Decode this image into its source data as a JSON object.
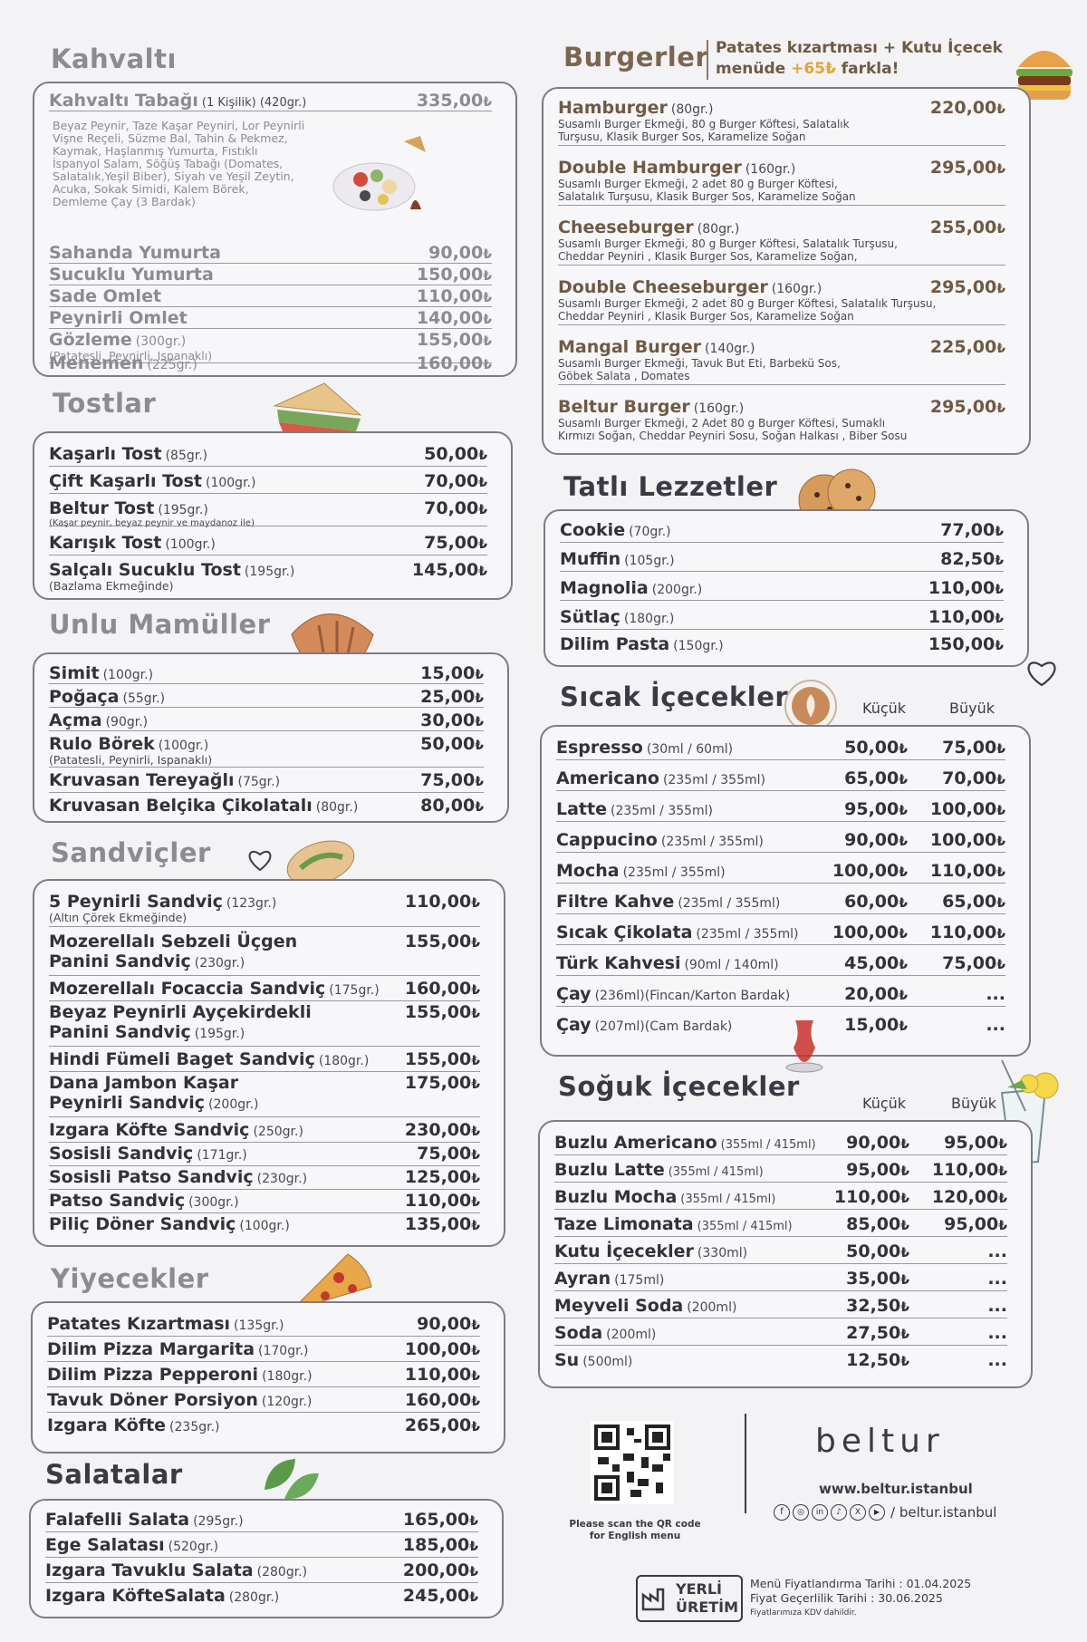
{
  "currency": "₺",
  "kahvalti": {
    "title": "Kahvaltı",
    "items": [
      {
        "name": "Kahvaltı Tabağı",
        "gram": "(1 Kişilik)  (420gr.)",
        "price": "335,00",
        "desc": "Beyaz Peynir, Taze Kaşar Peyniri, Lor Peynirli\nVişne Reçeli, Süzme Bal, Tahin & Pekmez,\nKaymak, Haşlanmış Yumurta, Fıstıklı\nİspanyol Salam, Söğüş Tabağı (Domates,\nSalatalık,Yeşil Biber), Siyah ve Yeşil Zeytin,\nAcuka, Sokak Simidi, Kalem Börek,\nDemleme Çay (3 Bardak)"
      },
      {
        "name": "Sahanda Yumurta",
        "gram": "",
        "price": "90,00"
      },
      {
        "name": "Sucuklu Yumurta",
        "gram": "",
        "price": "150,00"
      },
      {
        "name": "Sade Omlet",
        "gram": "",
        "price": "110,00"
      },
      {
        "name": "Peynirli Omlet",
        "gram": "",
        "price": "140,00"
      },
      {
        "name": "Gözleme",
        "gram": "(300gr.)",
        "price": "155,00",
        "desc": "(Patatesli, Peynirli, Ispanaklı)"
      },
      {
        "name": "Menemen",
        "gram": "(225gr.)",
        "price": "160,00"
      }
    ]
  },
  "tostlar": {
    "title": "Tostlar",
    "items": [
      {
        "name": "Kaşarlı Tost",
        "gram": "(85gr.)",
        "price": "50,00"
      },
      {
        "name": "Çift Kaşarlı Tost",
        "gram": "(100gr.)",
        "price": "70,00"
      },
      {
        "name": "Beltur Tost",
        "gram": "(195gr.)",
        "price": "70,00",
        "desc": "(Kaşar peynir, beyaz peynir ve maydanoz ile)"
      },
      {
        "name": "Karışık Tost",
        "gram": "(100gr.)",
        "price": "75,00"
      },
      {
        "name": "Salçalı Sucuklu Tost",
        "gram": "(195gr.)",
        "price": "145,00",
        "desc": "(Bazlama Ekmeğinde)"
      }
    ]
  },
  "unlu": {
    "title": "Unlu Mamüller",
    "items": [
      {
        "name": "Simit",
        "gram": "(100gr.)",
        "price": "15,00"
      },
      {
        "name": "Poğaça",
        "gram": "(55gr.)",
        "price": "25,00"
      },
      {
        "name": "Açma",
        "gram": "(90gr.)",
        "price": "30,00"
      },
      {
        "name": "Rulo Börek",
        "gram": "(100gr.)",
        "price": "50,00",
        "desc": "(Patatesli, Peynirli, Ispanaklı)"
      },
      {
        "name": "Kruvasan Tereyağlı",
        "gram": "(75gr.)",
        "price": "75,00"
      },
      {
        "name": "Kruvasan Belçika Çikolatalı",
        "gram": "(80gr.)",
        "price": "80,00"
      }
    ]
  },
  "sandvicler": {
    "title": "Sandviçler",
    "items": [
      {
        "name": "5 Peynirli Sandviç",
        "gram": "(123gr.)",
        "price": "110,00",
        "desc": "(Altın Çörek Ekmeğinde)"
      },
      {
        "name": "Mozerellalı Sebzeli Üçgen",
        "name2": "Panini Sandviç",
        "gram": "(230gr.)",
        "price": "155,00"
      },
      {
        "name": "Mozerellalı Focaccia Sandviç",
        "gram": "(175gr.)",
        "price": "160,00"
      },
      {
        "name": "Beyaz Peynirli Ayçekirdekli",
        "name2": "Panini Sandviç",
        "gram": "(195gr.)",
        "price": "155,00"
      },
      {
        "name": "Hindi Fümeli Baget Sandviç",
        "gram": "(180gr.)",
        "price": "155,00"
      },
      {
        "name": "Dana Jambon Kaşar",
        "name2": "Peynirli Sandviç",
        "gram": "(200gr.)",
        "price": "175,00"
      },
      {
        "name": "Izgara Köfte Sandviç",
        "gram": "(250gr.)",
        "price": "230,00"
      },
      {
        "name": "Sosisli Sandviç",
        "gram": "(171gr.)",
        "price": "75,00"
      },
      {
        "name": "Sosisli Patso Sandviç",
        "gram": "(230gr.)",
        "price": "125,00"
      },
      {
        "name": "Patso Sandviç",
        "gram": "(300gr.)",
        "price": "110,00"
      },
      {
        "name": "Piliç Döner Sandviç",
        "gram": "(100gr.)",
        "price": "135,00"
      }
    ]
  },
  "yiyecekler": {
    "title": "Yiyecekler",
    "items": [
      {
        "name": "Patates Kızartması",
        "gram": "(135gr.)",
        "price": "90,00"
      },
      {
        "name": "Dilim Pizza Margarita",
        "gram": "(170gr.)",
        "price": "100,00"
      },
      {
        "name": "Dilim Pizza Pepperoni",
        "gram": "(180gr.)",
        "price": "110,00"
      },
      {
        "name": "Tavuk Döner Porsiyon",
        "gram": "(120gr.)",
        "price": "160,00"
      },
      {
        "name": "Izgara Köfte",
        "gram": "(235gr.)",
        "price": "265,00"
      }
    ]
  },
  "salatalar": {
    "title": "Salatalar",
    "items": [
      {
        "name": "Falafelli Salata",
        "gram": "(295gr.)",
        "price": "165,00"
      },
      {
        "name": "Ege Salatası",
        "gram": "(520gr.)",
        "price": "185,00"
      },
      {
        "name": "Izgara Tavuklu Salata",
        "gram": "(280gr.)",
        "price": "200,00"
      },
      {
        "name": "Izgara KöfteSalata",
        "gram": "(280gr.)",
        "price": "245,00"
      }
    ]
  },
  "burgerler": {
    "title": "Burgerler",
    "promo_line1": "Patates kızartması + Kutu İçecek",
    "promo_line2_a": "menüde",
    "promo_line2_b": "+65₺",
    "promo_line2_c": "farkla!",
    "items": [
      {
        "name": "Hamburger",
        "gram": "(80gr.)",
        "price": "220,00",
        "desc": "Susamlı Burger Ekmeği, 80 g Burger Köftesi, Salatalık\nTurşusu, Klasik Burger Sos, Karamelize Soğan"
      },
      {
        "name": "Double Hamburger",
        "gram": "(160gr.)",
        "price": "295,00",
        "desc": "Susamlı Burger Ekmeği, 2 adet 80 g Burger Köftesi,\nSalatalık Turşusu, Klasik Burger Sos, Karamelize Soğan"
      },
      {
        "name": "Cheeseburger",
        "gram": "(80gr.)",
        "price": "255,00",
        "desc": "Susamlı Burger Ekmeği, 80 g Burger Köftesi, Salatalık Turşusu,\nCheddar Peyniri , Klasik Burger Sos, Karamelize Soğan,"
      },
      {
        "name": "Double Cheeseburger",
        "gram": "(160gr.)",
        "price": "295,00",
        "desc": "Susamlı Burger Ekmeği, 2 adet 80 g Burger Köftesi, Salatalık Turşusu,\nCheddar Peyniri , Klasik Burger Sos, Karamelize Soğan"
      },
      {
        "name": "Mangal Burger",
        "gram": "(140gr.)",
        "price": "225,00",
        "desc": "Susamlı Burger Ekmeği, Tavuk But Eti, Barbekü Sos,\nGöbek Salata , Domates"
      },
      {
        "name": "Beltur Burger",
        "gram": "(160gr.)",
        "price": "295,00",
        "desc": "Susamlı Burger Ekmeği, 2 Adet 80 g Burger Köftesi, Sumaklı\nKırmızı Soğan, Cheddar Peyniri Sosu, Soğan Halkası , Biber Sosu"
      }
    ]
  },
  "tatli": {
    "title": "Tatlı Lezzetler",
    "items": [
      {
        "name": "Cookie",
        "gram": "(70gr.)",
        "price": "77,00"
      },
      {
        "name": "Muffin",
        "gram": "(105gr.)",
        "price": "82,50"
      },
      {
        "name": "Magnolia",
        "gram": "(200gr.)",
        "price": "110,00"
      },
      {
        "name": "Sütlaç",
        "gram": "(180gr.)",
        "price": "110,00"
      },
      {
        "name": "Dilim Pasta",
        "gram": "(150gr.)",
        "price": "150,00"
      }
    ]
  },
  "sicak": {
    "title": "Sıcak İçecekler",
    "col_small": "Küçük",
    "col_large": "Büyük",
    "items": [
      {
        "name": "Espresso",
        "gram": "(30ml / 60ml)",
        "small": "50,00",
        "large": "75,00"
      },
      {
        "name": "Americano",
        "gram": "(235ml / 355ml)",
        "small": "65,00",
        "large": "70,00"
      },
      {
        "name": "Latte",
        "gram": "(235ml / 355ml)",
        "small": "95,00",
        "large": "100,00"
      },
      {
        "name": "Cappucino",
        "gram": "(235ml / 355ml)",
        "small": "90,00",
        "large": "100,00"
      },
      {
        "name": "Mocha",
        "gram": "(235ml / 355ml)",
        "small": "100,00",
        "large": "110,00"
      },
      {
        "name": "Filtre Kahve",
        "gram": "(235ml / 355ml)",
        "small": "60,00",
        "large": "65,00"
      },
      {
        "name": "Sıcak Çikolata",
        "gram": "(235ml / 355ml)",
        "small": "100,00",
        "large": "110,00"
      },
      {
        "name": "Türk Kahvesi",
        "gram": "(90ml / 140ml)",
        "small": "45,00",
        "large": "75,00"
      },
      {
        "name": "Çay",
        "gram": "(236ml)(Fincan/Karton Bardak)",
        "small": "20,00",
        "large": "..."
      },
      {
        "name": "Çay",
        "gram": "(207ml)(Cam Bardak)",
        "small": "15,00",
        "large": "..."
      }
    ]
  },
  "soguk": {
    "title": "Soğuk İçecekler",
    "col_small": "Küçük",
    "col_large": "Büyük",
    "items": [
      {
        "name": "Buzlu Americano",
        "gram": "(355ml / 415ml)",
        "small": "90,00",
        "large": "95,00"
      },
      {
        "name": "Buzlu Latte",
        "gram": "(355ml / 415ml)",
        "small": "95,00",
        "large": "110,00"
      },
      {
        "name": "Buzlu Mocha",
        "gram": "(355ml / 415ml)",
        "small": "110,00",
        "large": "120,00"
      },
      {
        "name": "Taze Limonata",
        "gram": "(355ml / 415ml)",
        "small": "85,00",
        "large": "95,00"
      },
      {
        "name": "Kutu İçecekler",
        "gram": "(330ml)",
        "small": "50,00",
        "large": "..."
      },
      {
        "name": "Ayran",
        "gram": "(175ml)",
        "small": "35,00",
        "large": "..."
      },
      {
        "name": "Meyveli Soda",
        "gram": "(200ml)",
        "small": "32,50",
        "large": "..."
      },
      {
        "name": "Soda",
        "gram": "(200ml)",
        "small": "27,50",
        "large": "..."
      },
      {
        "name": "Su",
        "gram": "(500ml)",
        "small": "12,50",
        "large": "..."
      }
    ]
  },
  "footer": {
    "qr_caption_1": "Please scan the QR code",
    "qr_caption_2": "for English menu",
    "brand": "beltur",
    "website": "www.beltur.istanbul",
    "social_handle": "/ beltur.istanbul",
    "badge_line1": "YERLİ",
    "badge_line2": "ÜRETİM",
    "pricing_date": "Menü Fiyatlandırma Tarihi : 01.04.2025",
    "validity_date": "Fiyat Geçerlilik Tarihi :  30.06.2025",
    "vat_note": "Fiyatlarımıza KDV dahildir."
  }
}
